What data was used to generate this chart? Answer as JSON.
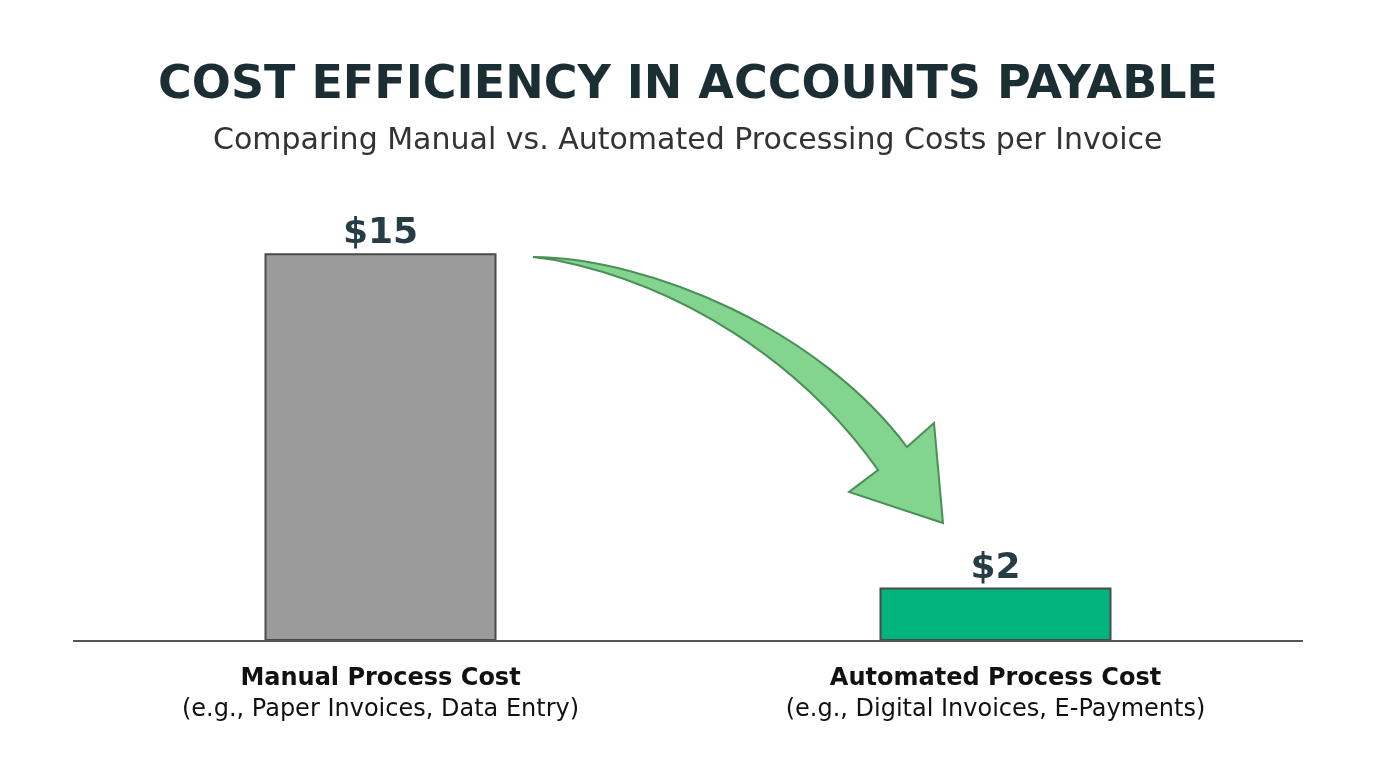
{
  "chart_data": {
    "type": "bar",
    "title": "COST EFFICIENCY IN ACCOUNTS PAYABLE",
    "subtitle": "Comparing Manual vs. Automated Processing Costs per Invoice",
    "categories": [
      "Manual Process Cost\n(e.g., Paper Invoices, Data Entry)",
      "Automated Process Cost\n(e.g., Digital Invoices, E-Payments)"
    ],
    "values": [
      15,
      2
    ],
    "colors": [
      "#9b9b9b",
      "#00b47d"
    ],
    "value_labels": [
      "$15",
      "$2"
    ],
    "tick_labels": "x"
  }
}
